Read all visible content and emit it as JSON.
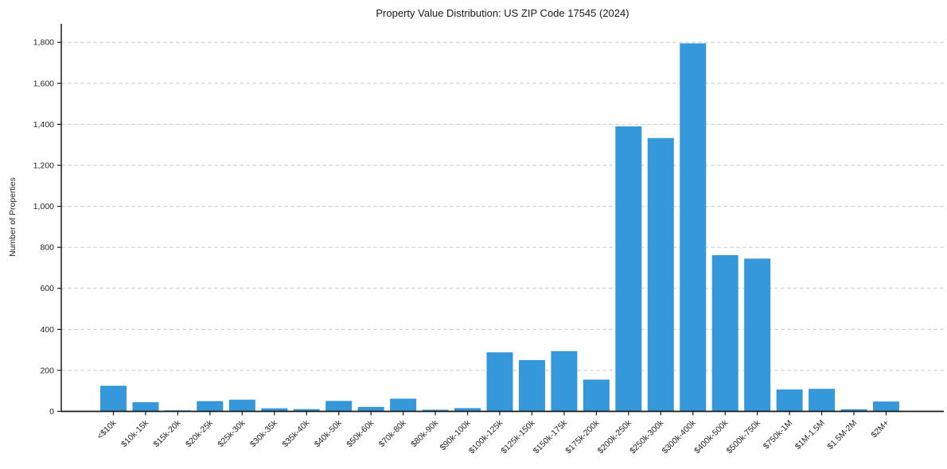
{
  "chart_data": {
    "type": "bar",
    "title": "Property Value Distribution: US ZIP Code 17545 (2024)",
    "xlabel": "",
    "ylabel": "Number of Properties",
    "categories": [
      "<$10k",
      "$10k-15k",
      "$15k-20k",
      "$20k-25k",
      "$25k-30k",
      "$30k-35k",
      "$35k-40k",
      "$40k-50k",
      "$50k-60k",
      "$70k-80k",
      "$80k-90k",
      "$90k-100k",
      "$100k-125k",
      "$125k-150k",
      "$150k-175k",
      "$175k-200k",
      "$200k-250k",
      "$250k-300k",
      "$300k-400k",
      "$400k-500k",
      "$500k-750k",
      "$750k-1M",
      "$1M-1.5M",
      "$1.5M-2M",
      "$2M+"
    ],
    "values": [
      125,
      45,
      5,
      50,
      57,
      15,
      11,
      51,
      22,
      62,
      8,
      16,
      288,
      250,
      294,
      155,
      1390,
      1333,
      1795,
      762,
      745,
      107,
      110,
      10,
      48
    ],
    "ylim": [
      0,
      1890
    ],
    "yticks": [
      0,
      200,
      400,
      600,
      800,
      1000,
      1200,
      1400,
      1600,
      1800
    ],
    "ytick_labels": [
      "0",
      "200",
      "400",
      "600",
      "800",
      "1,000",
      "1,200",
      "1,400",
      "1,600",
      "1,800"
    ],
    "grid": "horizontal dashed gridlines at y ticks",
    "legend": "none",
    "xtick_rotation_deg": 45,
    "colors": {
      "bar": "#3498db",
      "axis": "#1a1a1a",
      "grid": "#cccccc",
      "text": "#262626",
      "background": "#ffffff"
    }
  }
}
